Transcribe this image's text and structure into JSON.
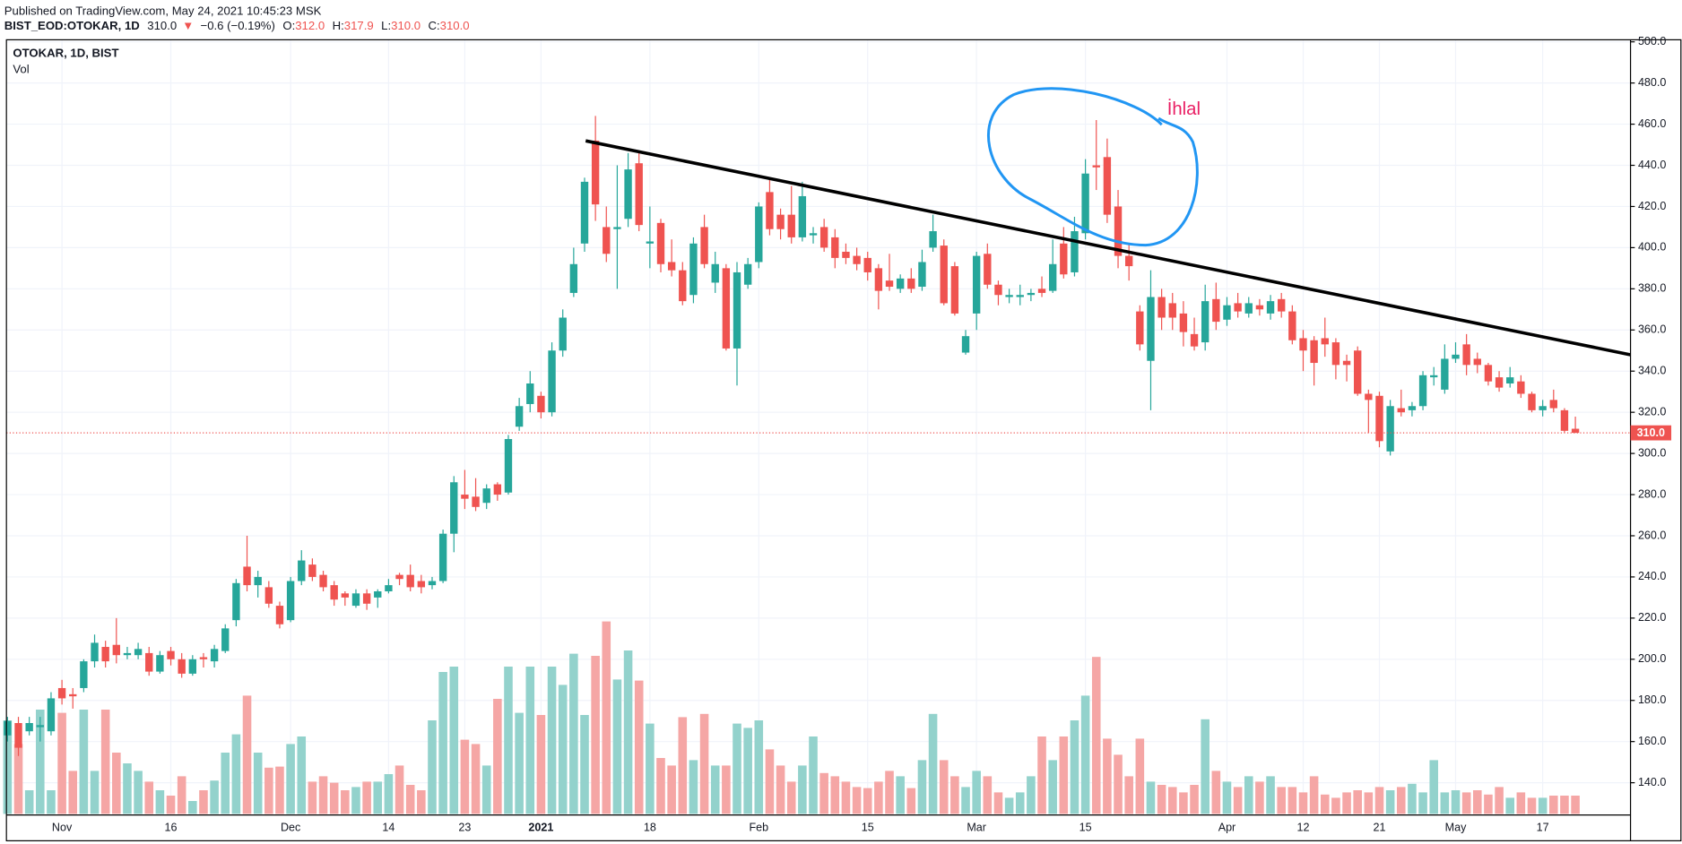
{
  "header": {
    "published": "Published on TradingView.com, May 24, 2021 10:45:23 MSK",
    "symbol": "BIST_EOD:OTOKAR, 1D",
    "last": "310.0",
    "arrow": "▼",
    "change": "−0.6 (−0.19%)",
    "o_key": "O:",
    "o_val": "312.0",
    "h_key": "H:",
    "h_val": "317.9",
    "l_key": "L:",
    "l_val": "310.0",
    "c_key": "C:",
    "c_val": "310.0"
  },
  "chart_data": {
    "type": "candlestick",
    "legend": "OTOKAR, 1D, BIST",
    "volume_legend": "Vol",
    "annotation": "İhlal",
    "last_price_label": "310.0",
    "up_color": "#26a69a",
    "down_color": "#ef5350",
    "up_volume_color": "#93d2cc",
    "down_volume_color": "#f5a6a5",
    "grid": true,
    "ylim": [
      111.8,
      501
    ],
    "yticks": [
      {
        "value": 140,
        "label": "140.0"
      },
      {
        "value": 160,
        "label": "160.0"
      },
      {
        "value": 180,
        "label": "180.0"
      },
      {
        "value": 200,
        "label": "200.0"
      },
      {
        "value": 220,
        "label": "220.0"
      },
      {
        "value": 240,
        "label": "240.0"
      },
      {
        "value": 260,
        "label": "260.0"
      },
      {
        "value": 280,
        "label": "280.0"
      },
      {
        "value": 300,
        "label": "300.0"
      },
      {
        "value": 320,
        "label": "320.0"
      },
      {
        "value": 340,
        "label": "340.0"
      },
      {
        "value": 360,
        "label": "360.0"
      },
      {
        "value": 380,
        "label": "380.0"
      },
      {
        "value": 400,
        "label": "400.0"
      },
      {
        "value": 420,
        "label": "420.0"
      },
      {
        "value": 440,
        "label": "440.0"
      },
      {
        "value": 460,
        "label": "460.0"
      },
      {
        "value": 480,
        "label": "480.0"
      },
      {
        "value": 500,
        "label": "500.0"
      }
    ],
    "volume_lim": [
      0,
      200
    ],
    "categories": [
      null,
      null,
      null,
      null,
      null,
      "Nov",
      null,
      null,
      null,
      null,
      null,
      null,
      null,
      null,
      null,
      "16",
      null,
      null,
      null,
      null,
      null,
      null,
      null,
      null,
      null,
      null,
      "Dec",
      null,
      null,
      null,
      null,
      null,
      null,
      null,
      null,
      "14",
      null,
      null,
      null,
      null,
      null,
      null,
      "23",
      null,
      null,
      null,
      null,
      null,
      null,
      "2021",
      null,
      null,
      null,
      null,
      null,
      null,
      null,
      null,
      null,
      "18",
      null,
      null,
      null,
      null,
      null,
      null,
      null,
      null,
      null,
      "Feb",
      null,
      null,
      null,
      null,
      null,
      null,
      null,
      null,
      null,
      "15",
      null,
      null,
      null,
      null,
      null,
      null,
      null,
      null,
      null,
      "Mar",
      null,
      null,
      null,
      null,
      null,
      null,
      null,
      null,
      null,
      "15",
      null,
      null,
      null,
      null,
      null,
      null,
      null,
      null,
      null,
      null,
      null,
      null,
      "Apr",
      null,
      null,
      null,
      null,
      null,
      null,
      "12",
      null,
      null,
      null,
      null,
      null,
      null,
      "21",
      null,
      null,
      null,
      null,
      null,
      null,
      "May",
      null,
      null,
      null,
      null,
      null,
      null,
      null,
      "17",
      null,
      null,
      null
    ],
    "open": [
      163,
      169,
      165,
      167,
      165,
      186,
      183,
      186,
      199,
      206,
      207,
      202,
      202,
      203,
      194,
      204,
      200,
      193,
      201,
      199,
      204,
      219,
      245,
      236,
      235,
      226,
      219,
      238,
      246,
      241,
      236,
      232,
      226,
      232,
      230,
      233,
      241,
      241,
      238,
      236,
      238,
      261,
      280,
      279,
      276,
      285,
      281,
      313,
      324,
      328,
      320,
      350,
      378,
      402,
      452,
      410,
      409,
      414,
      441,
      402,
      412,
      393,
      389,
      377,
      410,
      383,
      390,
      351,
      382,
      393,
      427,
      416,
      416,
      405,
      406,
      410,
      405,
      398,
      396,
      395,
      390,
      384,
      380,
      385,
      381,
      400,
      401,
      391,
      349,
      368,
      397,
      382,
      376,
      376,
      377,
      380,
      379,
      402,
      388,
      407,
      440,
      444,
      420,
      396,
      369,
      345,
      376,
      373,
      368,
      358,
      354,
      375,
      365,
      373,
      368,
      372,
      368,
      375,
      369,
      356,
      355,
      356,
      354,
      345,
      350,
      329,
      328,
      301,
      322,
      321,
      323,
      337,
      331,
      346,
      353,
      346,
      343,
      337,
      334,
      335,
      329,
      321,
      326,
      321,
      312
    ],
    "high": [
      172,
      172,
      172,
      172,
      184,
      190,
      186,
      200,
      212,
      209,
      220,
      206,
      208,
      206,
      204,
      206,
      203,
      202,
      203,
      207,
      217,
      239,
      260,
      243,
      238,
      228,
      240,
      253,
      249,
      243,
      238,
      233,
      234,
      234,
      234,
      239,
      242,
      246,
      241,
      240,
      263,
      289,
      292,
      288,
      285,
      286,
      309,
      327,
      340,
      330,
      354,
      370,
      400,
      434,
      464,
      420,
      440,
      446,
      447,
      420,
      414,
      404,
      393,
      405,
      416,
      398,
      392,
      393,
      395,
      422,
      434,
      419,
      430,
      432,
      410,
      414,
      409,
      402,
      400,
      398,
      392,
      397,
      387,
      390,
      399,
      416,
      404,
      393,
      360,
      398,
      402,
      384,
      380,
      382,
      380,
      386,
      404,
      410,
      415,
      443,
      462,
      453,
      428,
      402,
      372,
      389,
      380,
      378,
      374,
      366,
      382,
      383,
      376,
      378,
      376,
      375,
      377,
      378,
      372,
      360,
      357,
      366,
      356,
      348,
      352,
      331,
      330,
      326,
      331,
      325,
      340,
      342,
      353,
      354,
      358,
      349,
      344,
      340,
      342,
      338,
      330,
      326,
      331,
      322,
      317.9
    ],
    "low": [
      160,
      153,
      163,
      160,
      163,
      178,
      176,
      184,
      196,
      196,
      198,
      200,
      200,
      192,
      193,
      197,
      191,
      192,
      196,
      196,
      203,
      216,
      233,
      230,
      225,
      215,
      218,
      236,
      238,
      233,
      226,
      226,
      225,
      224,
      225,
      232,
      236,
      233,
      232,
      234,
      237,
      252,
      273,
      272,
      273,
      277,
      280,
      311,
      320,
      317,
      318,
      347,
      376,
      398,
      413,
      393,
      380,
      410,
      408,
      390,
      388,
      386,
      372,
      373,
      390,
      378,
      350,
      333,
      380,
      390,
      406,
      404,
      402,
      403,
      402,
      398,
      390,
      392,
      389,
      384,
      370,
      379,
      378,
      378,
      379,
      398,
      372,
      367,
      348,
      360,
      380,
      372,
      373,
      372,
      374,
      376,
      378,
      385,
      386,
      404,
      428,
      412,
      390,
      384,
      350,
      321,
      360,
      360,
      352,
      350,
      350,
      360,
      362,
      366,
      366,
      367,
      365,
      366,
      353,
      340,
      333,
      347,
      336,
      335,
      328,
      310,
      303,
      299,
      318,
      318,
      321,
      333,
      329,
      344,
      338,
      339,
      333,
      330,
      332,
      327,
      320,
      318,
      320,
      310,
      310
    ],
    "close": [
      170,
      157,
      169,
      168,
      181,
      181,
      182,
      199,
      208,
      199,
      202,
      203,
      205,
      194,
      202,
      200,
      193,
      200,
      200,
      205,
      215,
      237,
      236,
      240,
      227,
      217,
      238,
      248,
      240,
      235,
      229,
      230,
      232,
      227,
      233,
      236,
      239,
      235,
      235,
      238,
      261,
      286,
      278,
      274,
      283,
      280,
      307,
      323,
      334,
      320,
      350,
      366,
      392,
      432,
      421,
      397,
      410,
      438,
      411,
      403,
      392,
      389,
      374,
      402,
      392,
      392,
      351,
      388,
      392,
      420,
      409,
      409,
      405,
      425,
      407,
      400,
      395,
      395,
      392,
      388,
      379,
      381,
      385,
      380,
      393,
      408,
      373,
      368,
      357,
      396,
      382,
      377,
      377,
      377,
      378,
      378,
      392,
      387,
      408,
      436,
      439,
      416,
      396,
      391,
      353,
      376,
      366,
      366,
      359,
      352,
      374,
      364,
      372,
      369,
      373,
      370,
      374,
      369,
      355,
      350,
      344,
      353,
      343,
      343,
      329,
      326,
      306,
      323,
      320,
      323,
      338,
      338,
      346,
      348,
      343,
      343,
      335,
      332,
      337,
      329,
      321,
      323,
      322,
      311,
      310
    ],
    "volume": [
      87,
      65,
      22,
      97,
      22,
      94,
      40,
      97,
      40,
      97,
      57,
      47,
      40,
      30,
      22,
      17,
      35,
      12,
      22,
      31,
      57,
      74,
      110,
      57,
      43,
      44,
      65,
      72,
      30,
      35,
      29,
      22,
      25,
      30,
      30,
      37,
      45,
      27,
      22,
      87,
      132,
      137,
      69,
      65,
      45,
      107,
      137,
      94,
      137,
      92,
      137,
      120,
      149,
      92,
      147,
      179,
      125,
      152,
      124,
      84,
      52,
      45,
      90,
      50,
      93,
      45,
      45,
      84,
      80,
      87,
      60,
      45,
      30,
      45,
      72,
      38,
      35,
      30,
      25,
      24,
      30,
      40,
      35,
      24,
      50,
      93,
      50,
      35,
      25,
      40,
      35,
      20,
      15,
      20,
      35,
      72,
      50,
      72,
      87,
      110,
      146,
      70,
      55,
      35,
      70,
      30,
      27,
      25,
      20,
      27,
      88,
      40,
      30,
      25,
      35,
      30,
      35,
      25,
      25,
      20,
      35,
      18,
      15,
      20,
      22,
      20,
      25,
      22,
      25,
      28,
      20,
      50,
      20,
      22,
      20,
      22,
      18,
      25,
      15,
      20,
      15,
      15,
      17,
      17,
      17
    ]
  }
}
